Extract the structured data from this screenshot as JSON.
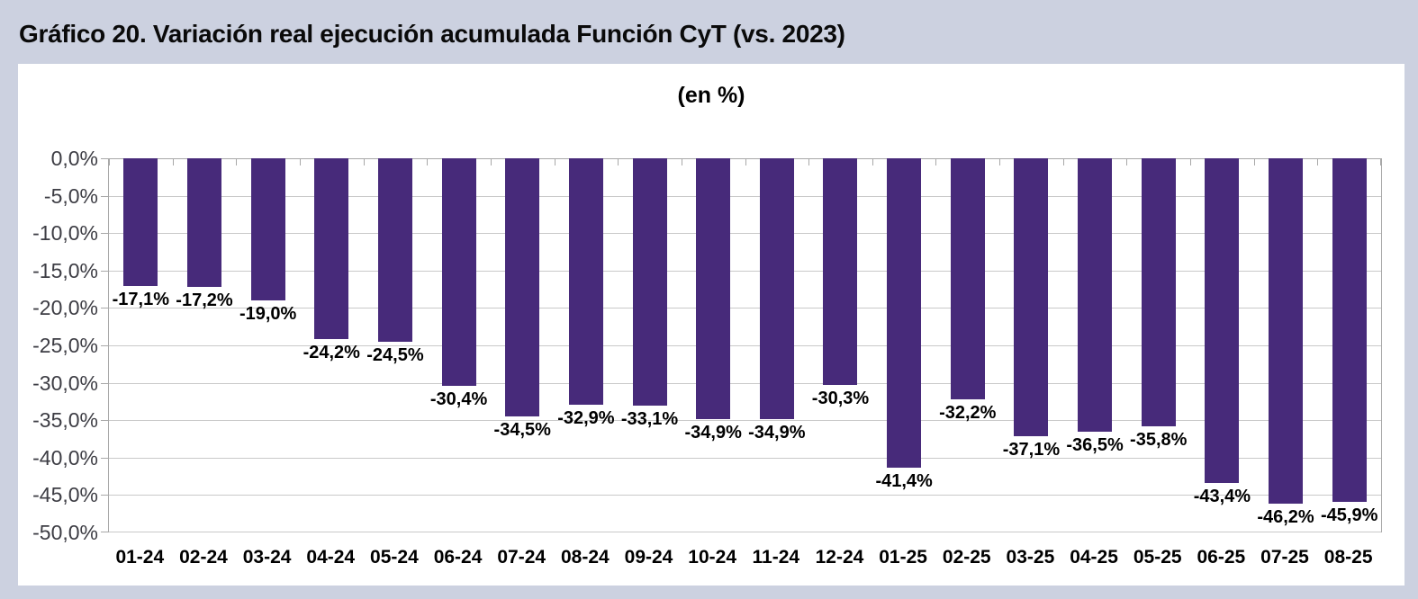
{
  "page": {
    "title": "Gráfico 20. Variación real ejecución acumulada Función CyT (vs. 2023)",
    "background_color": "#ccd1e0",
    "panel_color": "#ffffff"
  },
  "chart_data": {
    "type": "bar",
    "title": "(en %)",
    "orientation": "vertical",
    "categories": [
      "01-24",
      "02-24",
      "03-24",
      "04-24",
      "05-24",
      "06-24",
      "07-24",
      "08-24",
      "09-24",
      "10-24",
      "11-24",
      "12-24",
      "01-25",
      "02-25",
      "03-25",
      "04-25",
      "05-25",
      "06-25",
      "07-25",
      "08-25"
    ],
    "values": [
      -17.1,
      -17.2,
      -19.0,
      -24.2,
      -24.5,
      -30.4,
      -34.5,
      -32.9,
      -33.1,
      -34.9,
      -34.9,
      -30.3,
      -41.4,
      -32.2,
      -37.1,
      -36.5,
      -35.8,
      -43.4,
      -46.2,
      -45.9
    ],
    "value_labels": [
      "-17,1%",
      "-17,2%",
      "-19,0%",
      "-24,2%",
      "-24,5%",
      "-30,4%",
      "-34,5%",
      "-32,9%",
      "-33,1%",
      "-34,9%",
      "-34,9%",
      "-30,3%",
      "-41,4%",
      "-32,2%",
      "-37,1%",
      "-36,5%",
      "-35,8%",
      "-43,4%",
      "-46,2%",
      "-45,9%"
    ],
    "xlabel": "",
    "ylabel": "",
    "ylim": [
      -50,
      0
    ],
    "y_ticks": [
      0,
      -5,
      -10,
      -15,
      -20,
      -25,
      -30,
      -35,
      -40,
      -45,
      -50
    ],
    "y_tick_labels": [
      "0,0%",
      "-5,0%",
      "-10,0%",
      "-15,0%",
      "-20,0%",
      "-25,0%",
      "-30,0%",
      "-35,0%",
      "-40,0%",
      "-45,0%",
      "-50,0%"
    ],
    "grid": true,
    "legend": "none",
    "bar_color": "#472a7a"
  }
}
